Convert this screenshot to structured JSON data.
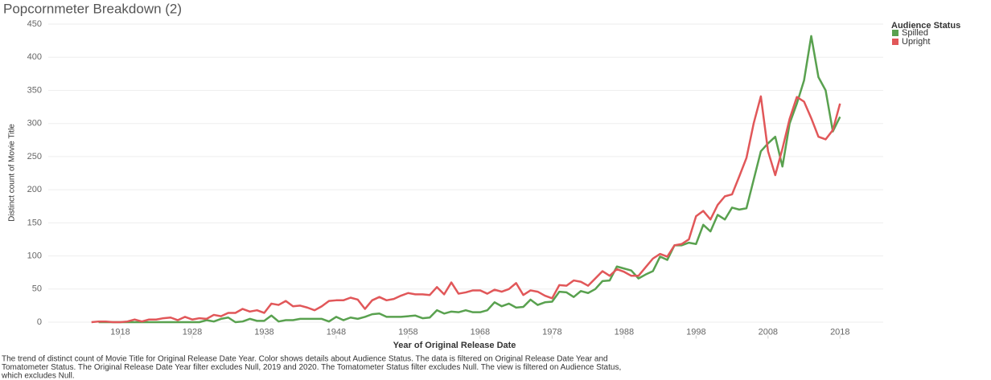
{
  "chart_data": {
    "type": "line",
    "title": "Popcornmeter Breakdown (2)",
    "x_label": "Year of Original Release Date",
    "y_label": "Distinct count of Movie Title",
    "legend_title": "Audience Status",
    "legend_position": "right",
    "grid": true,
    "caption": [
      "The trend of distinct count of Movie Title for Original Release Date Year.  Color shows details about Audience Status. The data is filtered on Original Release Date Year and",
      "Tomatometer Status. The Original Release Date Year filter excludes Null, 2019 and 2020. The Tomatometer Status filter excludes Null. The view is filtered on Audience Status,",
      "which excludes Null."
    ],
    "xlim": [
      1908,
      2024
    ],
    "ylim": [
      -20,
      460
    ],
    "xticks": [
      1918,
      1928,
      1938,
      1948,
      1958,
      1968,
      1978,
      1988,
      1998,
      2008,
      2018
    ],
    "yticks": [
      0,
      50,
      100,
      150,
      200,
      250,
      300,
      350,
      400,
      450
    ],
    "x": [
      1914,
      1915,
      1916,
      1917,
      1918,
      1919,
      1920,
      1921,
      1922,
      1923,
      1924,
      1925,
      1926,
      1927,
      1928,
      1929,
      1930,
      1931,
      1932,
      1933,
      1934,
      1935,
      1936,
      1937,
      1938,
      1939,
      1940,
      1941,
      1942,
      1943,
      1944,
      1945,
      1946,
      1947,
      1948,
      1949,
      1950,
      1951,
      1952,
      1953,
      1954,
      1955,
      1956,
      1957,
      1958,
      1959,
      1960,
      1961,
      1962,
      1963,
      1964,
      1965,
      1966,
      1967,
      1968,
      1969,
      1970,
      1971,
      1972,
      1973,
      1974,
      1975,
      1976,
      1977,
      1978,
      1979,
      1980,
      1981,
      1982,
      1983,
      1984,
      1985,
      1986,
      1987,
      1988,
      1989,
      1990,
      1991,
      1992,
      1993,
      1994,
      1995,
      1996,
      1997,
      1998,
      1999,
      2000,
      2001,
      2002,
      2003,
      2004,
      2005,
      2006,
      2007,
      2008,
      2009,
      2010,
      2011,
      2012,
      2013,
      2014,
      2015,
      2016,
      2017,
      2018
    ],
    "series": [
      {
        "name": "Spilled",
        "color": "#59a14f",
        "values": [
          null,
          0,
          0,
          0,
          0,
          0,
          0,
          0,
          0,
          0,
          0,
          0,
          0,
          0,
          0,
          0,
          3,
          1,
          5,
          7,
          0,
          1,
          5,
          2,
          2,
          10,
          1,
          3,
          3,
          5,
          5,
          5,
          5,
          1,
          8,
          3,
          7,
          5,
          8,
          12,
          13,
          8,
          8,
          8,
          9,
          10,
          6,
          7,
          18,
          13,
          16,
          15,
          18,
          15,
          15,
          18,
          30,
          24,
          28,
          22,
          23,
          34,
          26,
          30,
          31,
          46,
          45,
          38,
          47,
          44,
          50,
          62,
          63,
          84,
          81,
          78,
          66,
          72,
          77,
          99,
          94,
          116,
          116,
          120,
          118,
          147,
          137,
          162,
          155,
          173,
          170,
          172,
          215,
          258,
          270,
          280,
          235,
          300,
          330,
          365,
          432,
          370,
          350,
          288,
          310
        ]
      },
      {
        "name": "Upright",
        "color": "#e15759",
        "values": [
          0,
          1,
          1,
          0,
          0,
          1,
          4,
          1,
          4,
          4,
          6,
          7,
          3,
          8,
          4,
          6,
          5,
          11,
          9,
          14,
          14,
          20,
          16,
          18,
          14,
          28,
          26,
          32,
          24,
          25,
          22,
          18,
          24,
          32,
          33,
          33,
          37,
          34,
          20,
          33,
          38,
          33,
          35,
          40,
          44,
          42,
          42,
          41,
          53,
          42,
          60,
          43,
          45,
          48,
          48,
          43,
          49,
          46,
          50,
          59,
          41,
          48,
          46,
          40,
          36,
          56,
          55,
          63,
          61,
          55,
          66,
          77,
          70,
          80,
          76,
          70,
          70,
          83,
          96,
          103,
          99,
          116,
          118,
          125,
          160,
          168,
          155,
          177,
          190,
          193,
          220,
          248,
          300,
          341,
          258,
          222,
          262,
          307,
          340,
          333,
          308,
          280,
          276,
          290,
          330
        ]
      }
    ]
  }
}
